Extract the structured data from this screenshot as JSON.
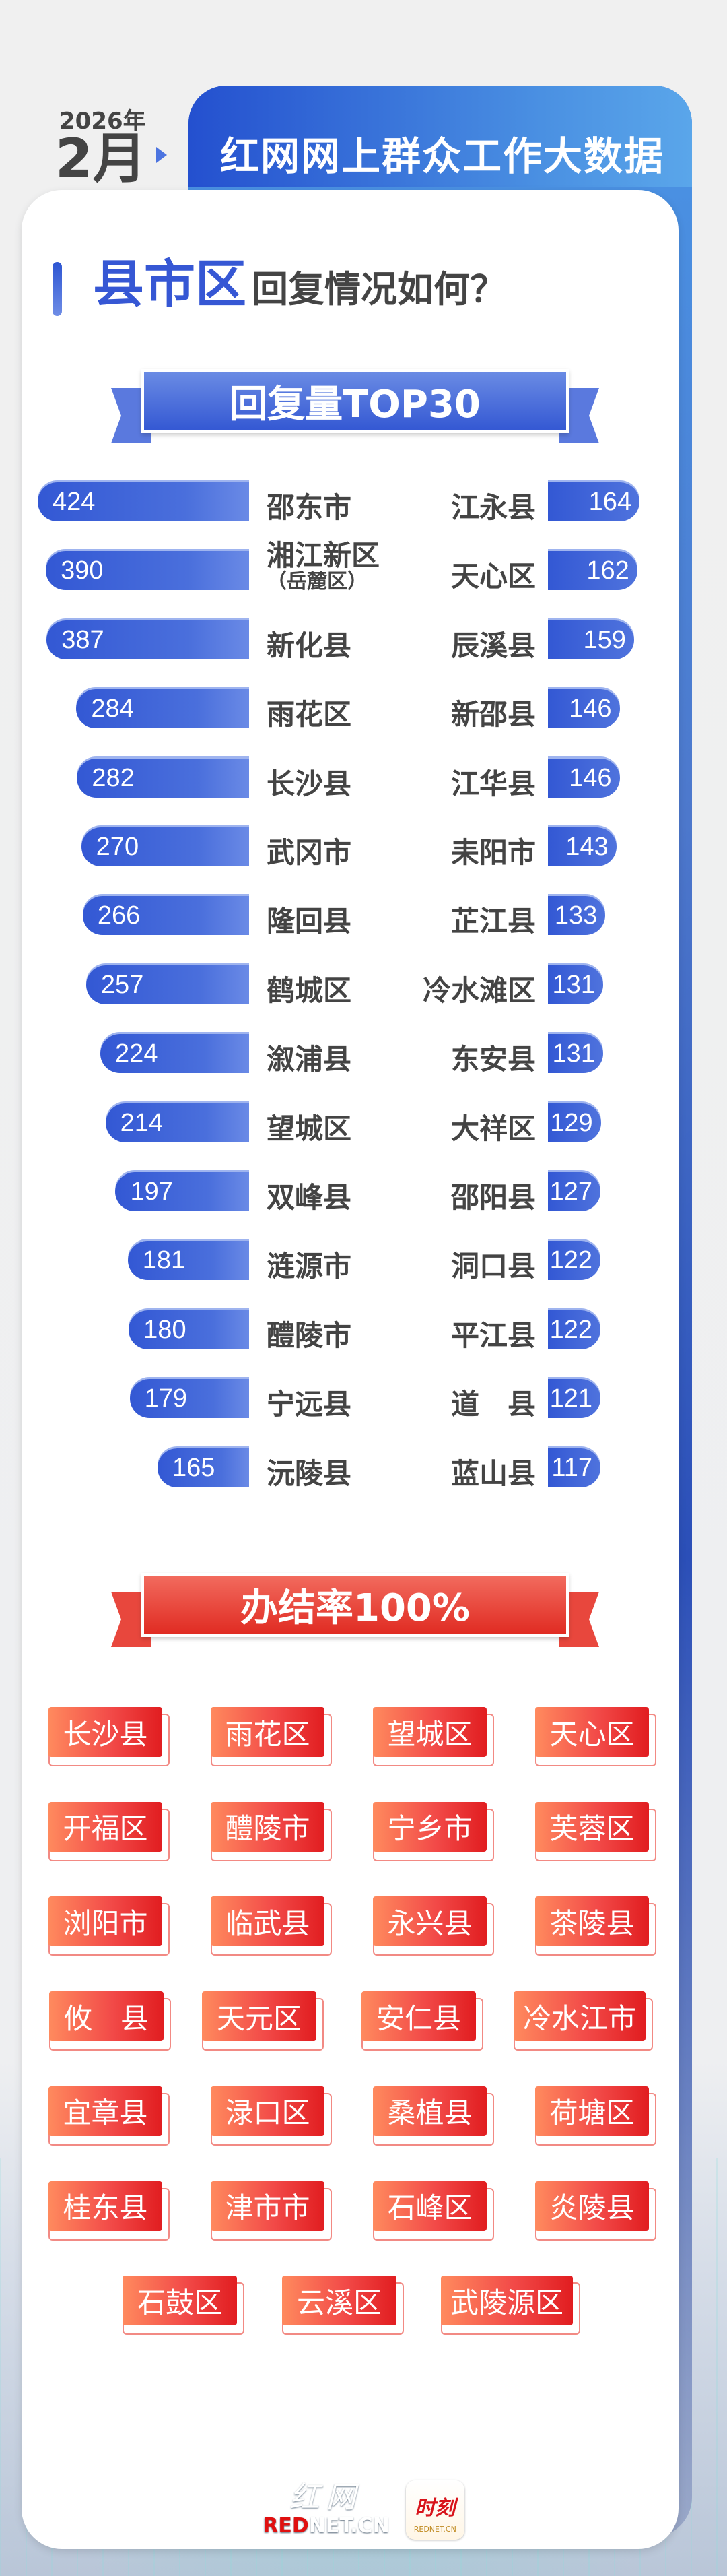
{
  "header": {
    "year": "2026年",
    "month": "2月",
    "title": "红网网上群众工作大数据"
  },
  "section": {
    "highlight": "县市区",
    "rest": "回复情况如何？"
  },
  "top30": {
    "ribbon": "回复量TOP30",
    "left": [
      {
        "name": "邵东市",
        "value": 424
      },
      {
        "name": "湘江新区",
        "sub": "（岳麓区）",
        "value": 390
      },
      {
        "name": "新化县",
        "value": 387
      },
      {
        "name": "雨花区",
        "value": 284
      },
      {
        "name": "长沙县",
        "value": 282
      },
      {
        "name": "武冈市",
        "value": 270
      },
      {
        "name": "隆回县",
        "value": 266
      },
      {
        "name": "鹤城区",
        "value": 257
      },
      {
        "name": "溆浦县",
        "value": 224
      },
      {
        "name": "望城区",
        "value": 214
      },
      {
        "name": "双峰县",
        "value": 197
      },
      {
        "name": "涟源市",
        "value": 181
      },
      {
        "name": "醴陵市",
        "value": 180
      },
      {
        "name": "宁远县",
        "value": 179
      },
      {
        "name": "沅陵县",
        "value": 165
      }
    ],
    "right": [
      {
        "name": "江永县",
        "value": 164
      },
      {
        "name": "天心区",
        "value": 162
      },
      {
        "name": "辰溪县",
        "value": 159
      },
      {
        "name": "新邵县",
        "value": 146
      },
      {
        "name": "江华县",
        "value": 146
      },
      {
        "name": "耒阳市",
        "value": 143
      },
      {
        "name": "芷江县",
        "value": 133
      },
      {
        "name": "冷水滩区",
        "value": 131
      },
      {
        "name": "东安县",
        "value": 131
      },
      {
        "name": "大祥区",
        "value": 129
      },
      {
        "name": "邵阳县",
        "value": 127
      },
      {
        "name": "洞口县",
        "value": 122
      },
      {
        "name": "平江县",
        "value": 122
      },
      {
        "name": "道　县",
        "value": 121
      },
      {
        "name": "蓝山县",
        "value": 117
      }
    ]
  },
  "completion": {
    "ribbon": "办结率100%",
    "tags": [
      "长沙县",
      "雨花区",
      "望城区",
      "天心区",
      "开福区",
      "醴陵市",
      "宁乡市",
      "芙蓉区",
      "浏阳市",
      "临武县",
      "永兴县",
      "茶陵县",
      "攸　县",
      "天元区",
      "安仁县",
      "冷水江市",
      "宜章县",
      "渌口区",
      "桑植县",
      "荷塘区",
      "桂东县",
      "津市市",
      "石峰区",
      "炎陵县",
      "石鼓区",
      "云溪区",
      "武陵源区"
    ]
  },
  "footer": {
    "logo_cn": "红网",
    "logo_en_red": "RED",
    "logo_en_rest": "NET.CN",
    "app_name": "时刻",
    "app_sub": "REDNET.CN"
  },
  "colors": {
    "blue": "#3358d4",
    "red": "#e8302a",
    "text": "#444444"
  }
}
